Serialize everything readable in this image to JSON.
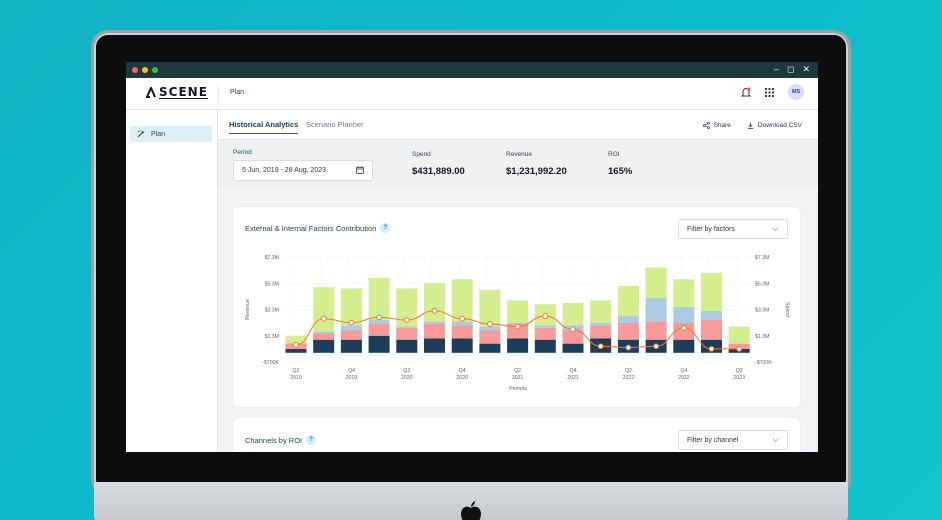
{
  "window": {
    "colors": {
      "close": "#ff5f57",
      "min": "#febc2e",
      "max": "#28c840"
    }
  },
  "app": {
    "brand": "SCENE",
    "page": "Plan",
    "user_initials": "MS"
  },
  "sidebar": {
    "items": [
      {
        "label": "Plan",
        "icon": "wand-icon"
      }
    ]
  },
  "tabs": [
    {
      "label": "Historical Analytics"
    },
    {
      "label": "Scenario Planner"
    }
  ],
  "actions": {
    "share": "Share",
    "download": "Download CSV"
  },
  "summary": {
    "period_label": "Period",
    "period_value": "5 Jun, 2019 - 28 Aug, 2023",
    "spend_label": "Spend",
    "spend_value": "$431,889.00",
    "revenue_label": "Revenue",
    "revenue_value": "$1,231,992.20",
    "roi_label": "ROI",
    "roi_value": "165%"
  },
  "factors_card": {
    "title": "External & Internal Factors Contribution",
    "help": "?",
    "filter": "Filter by factors"
  },
  "channels_card": {
    "title": "Channels by ROI",
    "help": "?",
    "filter": "Filter by channel"
  },
  "chart_data": {
    "type": "bar",
    "xlabel": "Periods",
    "ylabel": "Revenue",
    "y2label": "Spend",
    "ytick_labels": [
      "$7.3M",
      "$5.3M",
      "$3.3M",
      "$1.3M",
      "-$700K"
    ],
    "y2tick_labels": [
      "$7.3M",
      "$5.3M",
      "$3.3M",
      "$1.3M",
      "-$700K"
    ],
    "xtick_labels": [
      [
        "Q2",
        "2019"
      ],
      [
        "Q4",
        "2019"
      ],
      [
        "Q2",
        "2020"
      ],
      [
        "Q4",
        "2020"
      ],
      [
        "Q2",
        "2021"
      ],
      [
        "Q4",
        "2021"
      ],
      [
        "Q2",
        "2022"
      ],
      [
        "Q4",
        "2022"
      ],
      [
        "Q2",
        "2023"
      ]
    ],
    "ylim": [
      -0.7,
      7.3
    ],
    "colors": {
      "navy": "#1d3e5a",
      "salmon": "#f69a9a",
      "blue": "#a9cbe6",
      "green": "#d4ed8d",
      "line": "#f2762d"
    },
    "series": [
      {
        "name": "navy",
        "values": [
          0.3,
          1.0,
          1.0,
          1.3,
          1.0,
          1.1,
          1.1,
          0.7,
          1.1,
          1.0,
          0.7,
          1.1,
          1.0,
          1.0,
          1.0,
          1.0
        ]
      },
      {
        "name": "salmon",
        "values": [
          0.4,
          0.5,
          0.7,
          0.9,
          0.9,
          1.1,
          1.0,
          1.0,
          1.1,
          0.9,
          1.0,
          1.0,
          1.3,
          1.4,
          1.3,
          1.5
        ]
      },
      {
        "name": "blue",
        "values": [
          0.05,
          0.1,
          0.4,
          0.3,
          0.1,
          0.2,
          0.3,
          0.3,
          0.1,
          0.2,
          0.4,
          0.2,
          0.5,
          1.8,
          1.2,
          0.7
        ]
      },
      {
        "name": "green",
        "values": [
          0.55,
          3.4,
          2.8,
          3.2,
          2.9,
          2.9,
          3.2,
          2.8,
          1.7,
          1.6,
          1.7,
          1.7,
          2.3,
          2.3,
          2.1,
          2.9
        ]
      }
    ],
    "series_extra": {
      "name": "green",
      "last": 1.3,
      "navy_last": 0.3,
      "salmon_last": 0.4
    },
    "line": [
      0.6,
      2.6,
      2.3,
      2.7,
      2.5,
      3.2,
      2.6,
      2.2,
      2.0,
      2.8,
      1.8,
      0.5,
      0.4,
      0.5,
      1.9,
      0.3
    ]
  }
}
